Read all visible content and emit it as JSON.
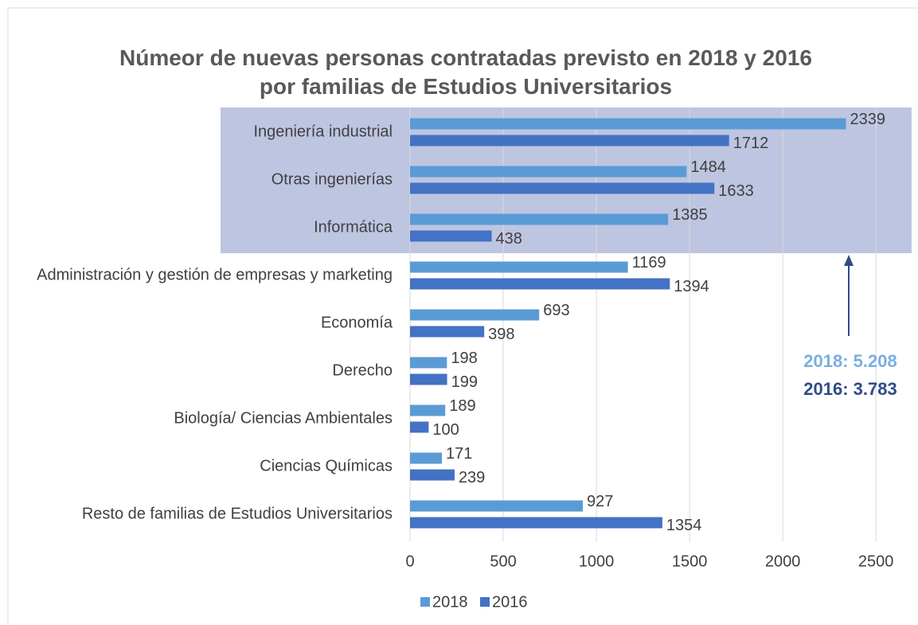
{
  "chart_data": {
    "type": "barh",
    "title": "Númeor de nuevas personas contratadas previsto en 2018 y 2016 por familias de Estudios Universitarios",
    "categories": [
      "Ingeniería industrial",
      "Otras ingenierías",
      "Informática",
      "Administración y gestión de empresas y marketing",
      "Economía",
      "Derecho",
      "Biología/ Ciencias Ambientales",
      "Ciencias Químicas",
      "Resto de familias de Estudios Universitarios"
    ],
    "series": [
      {
        "name": "2018",
        "color": "#5b9bd5",
        "values": [
          2339,
          1484,
          1385,
          1169,
          693,
          198,
          189,
          171,
          927
        ]
      },
      {
        "name": "2016",
        "color": "#4472c4",
        "values": [
          1712,
          1633,
          438,
          1394,
          398,
          199,
          100,
          239,
          1354
        ]
      }
    ],
    "xlim": [
      0,
      2700
    ],
    "xticks": [
      0,
      500,
      1000,
      1500,
      2000,
      2500
    ],
    "grid": true,
    "legend": "bottom",
    "annotations": [
      {
        "text": "2018: 5.208",
        "color": "#7aaee0"
      },
      {
        "text": "2016: 3.783",
        "color": "#2f4b8a"
      }
    ]
  }
}
